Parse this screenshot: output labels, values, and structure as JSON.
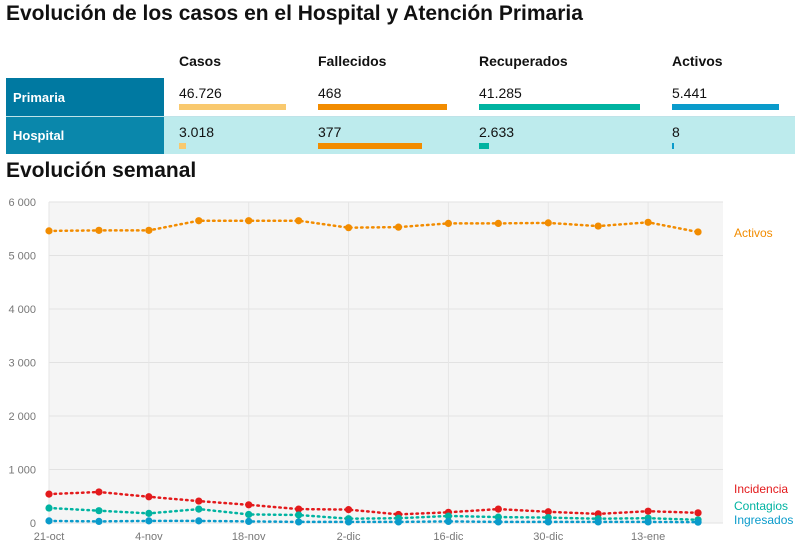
{
  "title": "Evolución de los casos en el Hospital y Atención Primaria",
  "subtitle": "Evolución semanal",
  "table": {
    "columns": [
      "Casos",
      "Fallecidos",
      "Recuperados",
      "Activos"
    ],
    "rows": [
      {
        "label": "Primaria",
        "values": [
          "46.726",
          "468",
          "41.285",
          "5.441"
        ],
        "bar_fractions": [
          1.0,
          1.0,
          1.0,
          1.0
        ]
      },
      {
        "label": "Hospital",
        "values": [
          "3.018",
          "377",
          "2.633",
          "8"
        ],
        "bar_fractions": [
          0.065,
          0.806,
          0.064,
          0.0015
        ]
      }
    ],
    "bar_colors": [
      "#f9c96e",
      "#f28c00",
      "#00b3a1",
      "#0a9bcb"
    ]
  },
  "chart_data": {
    "type": "line",
    "x_tick_labels": [
      "21-oct",
      "4-nov",
      "18-nov",
      "2-dic",
      "16-dic",
      "30-dic",
      "13-ene"
    ],
    "x": [
      "21-oct",
      "28-oct",
      "4-nov",
      "11-nov",
      "18-nov",
      "25-nov",
      "2-dic",
      "9-dic",
      "16-dic",
      "23-dic",
      "30-dic",
      "6-ene",
      "13-ene",
      "20-ene"
    ],
    "ylim": [
      0,
      6000
    ],
    "y_ticks": [
      0,
      1000,
      2000,
      3000,
      4000,
      5000,
      6000
    ],
    "y_tick_labels": [
      "0",
      "1 000",
      "2 000",
      "3 000",
      "4 000",
      "5 000",
      "6 000"
    ],
    "grid": true,
    "series": [
      {
        "name": "Activos",
        "color": "#f28c00",
        "values": [
          5460,
          5470,
          5470,
          5650,
          5650,
          5650,
          5520,
          5530,
          5600,
          5600,
          5610,
          5550,
          5620,
          5440
        ]
      },
      {
        "name": "Incidencia",
        "color": "#e31a1c",
        "values": [
          540,
          580,
          490,
          410,
          340,
          260,
          250,
          160,
          200,
          260,
          210,
          170,
          220,
          190
        ]
      },
      {
        "name": "Contagios",
        "color": "#00b3a1",
        "values": [
          280,
          230,
          180,
          260,
          160,
          150,
          80,
          90,
          130,
          110,
          100,
          80,
          90,
          60
        ]
      },
      {
        "name": "Ingresados",
        "color": "#0a9bcb",
        "values": [
          40,
          30,
          40,
          40,
          30,
          20,
          20,
          20,
          30,
          20,
          20,
          20,
          20,
          15
        ]
      }
    ]
  }
}
